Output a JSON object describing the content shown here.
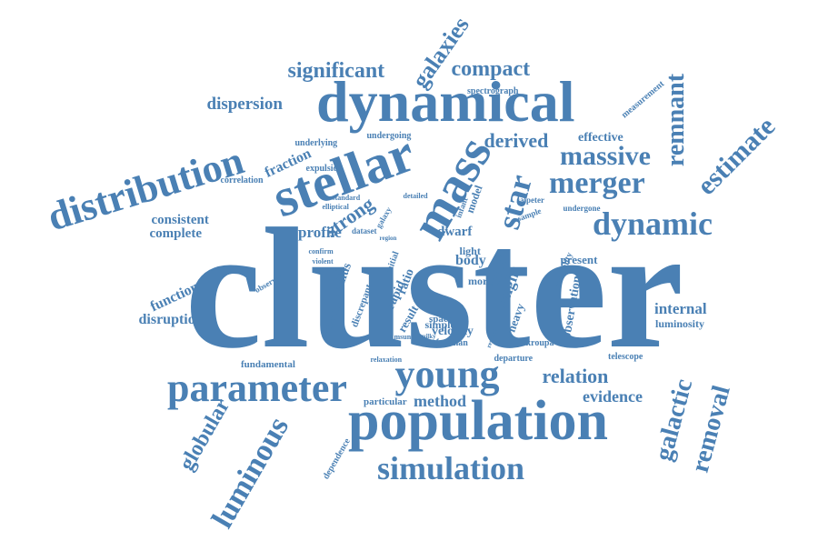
{
  "color": "#4a80b4",
  "words": [
    "cluster",
    "population",
    "dynamical",
    "stellar",
    "parameter",
    "young",
    "distribution",
    "mass",
    "simulation",
    "merger",
    "dynamic",
    "remnant",
    "estimate",
    "massive",
    "star",
    "luminous",
    "galactic",
    "removal",
    "globular",
    "galaxies",
    "significant",
    "compact",
    "dispersion",
    "derived",
    "relation",
    "method",
    "evidence",
    "internal",
    "strong",
    "consistent",
    "complete",
    "function",
    "disruption",
    "fraction",
    "profile",
    "dwarf",
    "effective",
    "weight",
    "effect",
    "radius",
    "body",
    "observation",
    "result",
    "luminosity",
    "velocity",
    "simple",
    "present",
    "fundamental",
    "departure",
    "telescope",
    "dependence",
    "particular",
    "undergoing",
    "underlying",
    "expulsion",
    "correlation",
    "measurement",
    "spectrograph",
    "elliptical",
    "standard",
    "detailed",
    "model",
    "infant",
    "salpeter",
    "sample",
    "undergone",
    "dataset",
    "region",
    "confirm",
    "violent",
    "observed",
    "initial",
    "light",
    "ratio",
    "rapid",
    "more",
    "heavy",
    "discrepant",
    "extinction",
    "msun",
    "milky",
    "freeman",
    "kroupa",
    "mortality",
    "relaxation",
    "space",
    "respect",
    "power",
    "galaxy"
  ]
}
